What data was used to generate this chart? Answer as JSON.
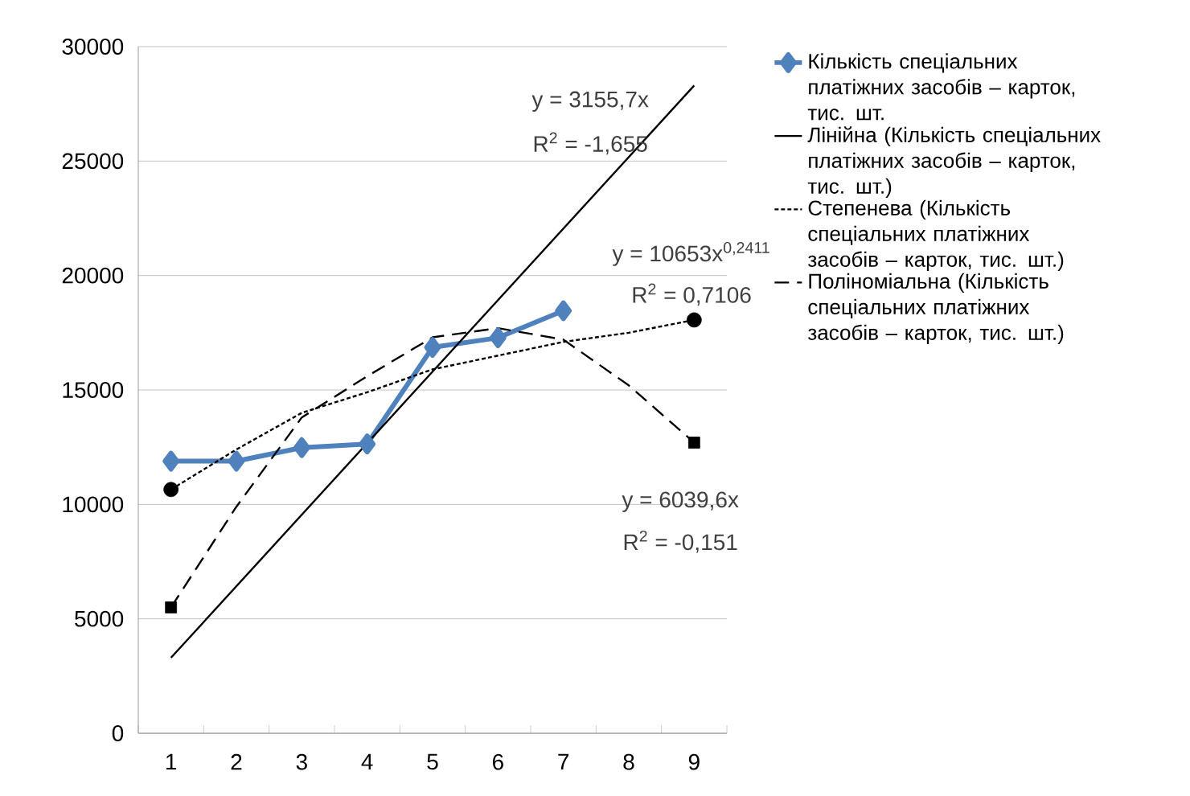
{
  "chart_data": {
    "type": "line",
    "categories": [
      "1",
      "2",
      "3",
      "4",
      "5",
      "6",
      "7",
      "8",
      "9"
    ],
    "ylim": [
      0,
      30000
    ],
    "yticks": [
      0,
      5000,
      10000,
      15000,
      20000,
      25000,
      30000
    ],
    "grid": "y",
    "legend": "right",
    "series": [
      {
        "name": "Кількість спеціальних платіжних засобів – карток, тис. шт.",
        "color": "#4f81bd",
        "marker": "diamond",
        "values": [
          11890,
          11890,
          12480,
          12640,
          16860,
          17280,
          18460,
          null,
          null
        ]
      },
      {
        "name": "Лінійна (Кількість спеціальних платіжних засобів – карток, тис. шт.)",
        "color": "#000000",
        "marker": "none",
        "line_style": "solid",
        "x": [
          "1",
          "9"
        ],
        "values": [
          3300,
          28300
        ]
      },
      {
        "name": "Степенева (Кількість спеціальних платіжних засобів – карток, тис. шт.)",
        "color": "#000000",
        "marker": "none",
        "line_style": "dotted",
        "values": [
          10650,
          12400,
          14000,
          14900,
          15900,
          16500,
          17100,
          17500,
          18060
        ]
      },
      {
        "name": "Поліноміальна (Кількість спеціальних платіжних засобів – карток, тис. шт.)",
        "color": "#000000",
        "marker": "none",
        "line_style": "dashed",
        "values": [
          5500,
          9900,
          13800,
          15600,
          17300,
          17700,
          17200,
          15200,
          12700
        ]
      },
      {
        "type": "scatter",
        "color": "#000000",
        "marker": "circle",
        "x": [
          "1",
          "9"
        ],
        "values": [
          10650,
          18060
        ]
      },
      {
        "type": "scatter",
        "color": "#000000",
        "marker": "square",
        "x": [
          "1",
          "9"
        ],
        "values": [
          5500,
          12700
        ]
      }
    ],
    "annotations": [
      "y = 3155,7x",
      "R$^{2}$ = -1,655",
      "y = 10653x$^{0,2411}$",
      "R$^{2}$ = 0,7106",
      "y = 6039,6x",
      "R$^{2}$ = -0,151"
    ]
  }
}
